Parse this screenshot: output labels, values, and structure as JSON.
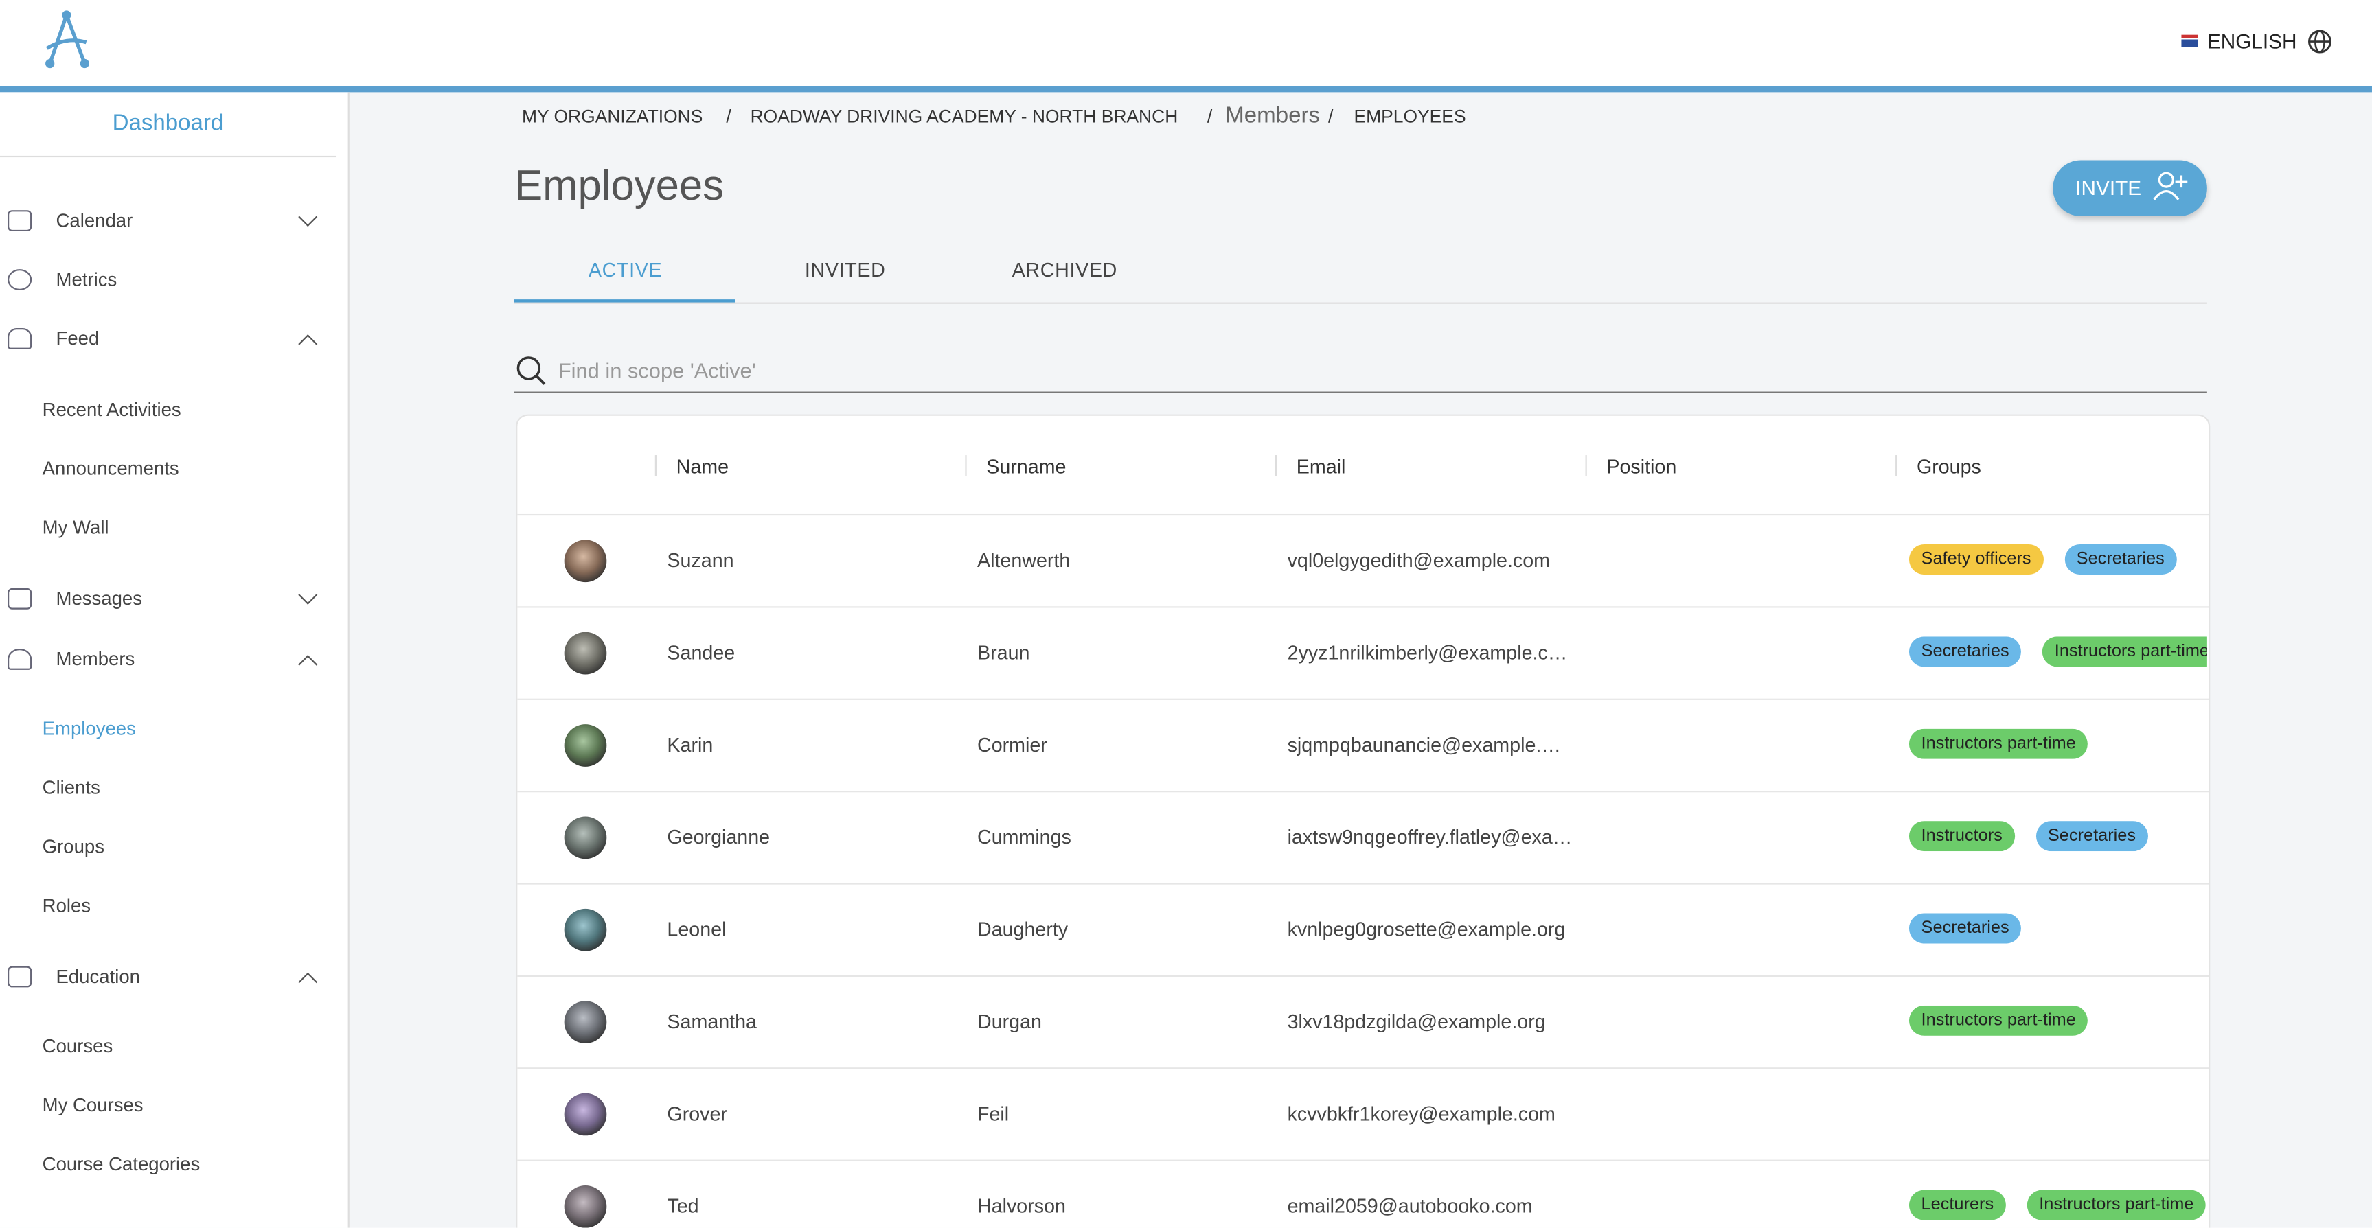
{
  "header": {
    "language": "ENGLISH"
  },
  "sidebar": {
    "dashboard": "Dashboard",
    "items": [
      {
        "label": "Calendar"
      },
      {
        "label": "Metrics"
      },
      {
        "label": "Feed"
      },
      {
        "label": "Recent Activities"
      },
      {
        "label": "Announcements"
      },
      {
        "label": "My Wall"
      },
      {
        "label": "Messages"
      },
      {
        "label": "Members"
      },
      {
        "label": "Employees"
      },
      {
        "label": "Clients"
      },
      {
        "label": "Groups"
      },
      {
        "label": "Roles"
      },
      {
        "label": "Education"
      },
      {
        "label": "Courses"
      },
      {
        "label": "My Courses"
      },
      {
        "label": "Course Categories"
      }
    ]
  },
  "breadcrumb": [
    "MY ORGANIZATIONS",
    "ROADWAY DRIVING ACADEMY - NORTH BRANCH",
    "Members",
    "EMPLOYEES"
  ],
  "page": {
    "title": "Employees",
    "invite": "INVITE",
    "tabs": [
      "ACTIVE",
      "INVITED",
      "ARCHIVED"
    ],
    "search_placeholder": "Find in scope 'Active'"
  },
  "table": {
    "columns": [
      "Name",
      "Surname",
      "Email",
      "Position",
      "Groups"
    ],
    "rows": [
      {
        "name": "Suzann",
        "surname": "Altenwerth",
        "email": "vql0elgygedith@example.com",
        "groups": [
          "Safety officers",
          "Secretaries"
        ]
      },
      {
        "name": "Sandee",
        "surname": "Braun",
        "email": "2yyz1nrilkimberly@example.c…",
        "groups": [
          "Secretaries",
          "Instructors part-time"
        ]
      },
      {
        "name": "Karin",
        "surname": "Cormier",
        "email": "sjqmpqbaunancie@example.…",
        "groups": [
          "Instructors part-time"
        ]
      },
      {
        "name": "Georgianne",
        "surname": "Cummings",
        "email": "iaxtsw9nqgeoffrey.flatley@exa…",
        "groups": [
          "Instructors",
          "Secretaries"
        ]
      },
      {
        "name": "Leonel",
        "surname": "Daugherty",
        "email": "kvnlpeg0grosette@example.org",
        "groups": [
          "Secretaries"
        ]
      },
      {
        "name": "Samantha",
        "surname": "Durgan",
        "email": "3lxv18pdzgilda@example.org",
        "groups": [
          "Instructors part-time"
        ]
      },
      {
        "name": "Grover",
        "surname": "Feil",
        "email": "kcvvbkfr1korey@example.com",
        "groups": []
      },
      {
        "name": "Ted",
        "surname": "Halvorson",
        "email": "email2059@autobooko.com",
        "groups": [
          "Lecturers",
          "Instructors part-time"
        ]
      }
    ]
  }
}
